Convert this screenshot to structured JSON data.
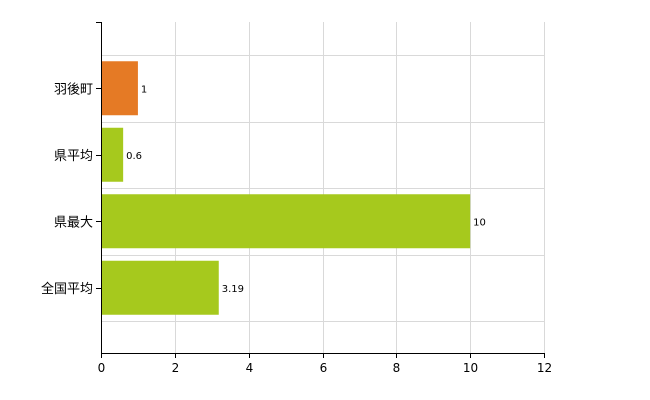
{
  "chart_data": {
    "type": "bar",
    "orientation": "horizontal",
    "title": "",
    "xlabel": "",
    "ylabel": "",
    "categories": [
      "羽後町",
      "県平均",
      "県最大",
      "全国平均"
    ],
    "values": [
      1,
      0.6,
      10,
      3.19
    ],
    "value_labels": [
      "1",
      "0.6",
      "10",
      "3.19"
    ],
    "bar_colors": [
      "#e57a25",
      "#a6c91d",
      "#a6c91d",
      "#a6c91d"
    ],
    "xlim": [
      0,
      12
    ],
    "x_ticks": [
      0,
      2,
      4,
      6,
      8,
      10,
      12
    ],
    "x_tick_labels": [
      "0",
      "2",
      "4",
      "6",
      "8",
      "10",
      "12"
    ],
    "grid": true,
    "legend": "none"
  }
}
